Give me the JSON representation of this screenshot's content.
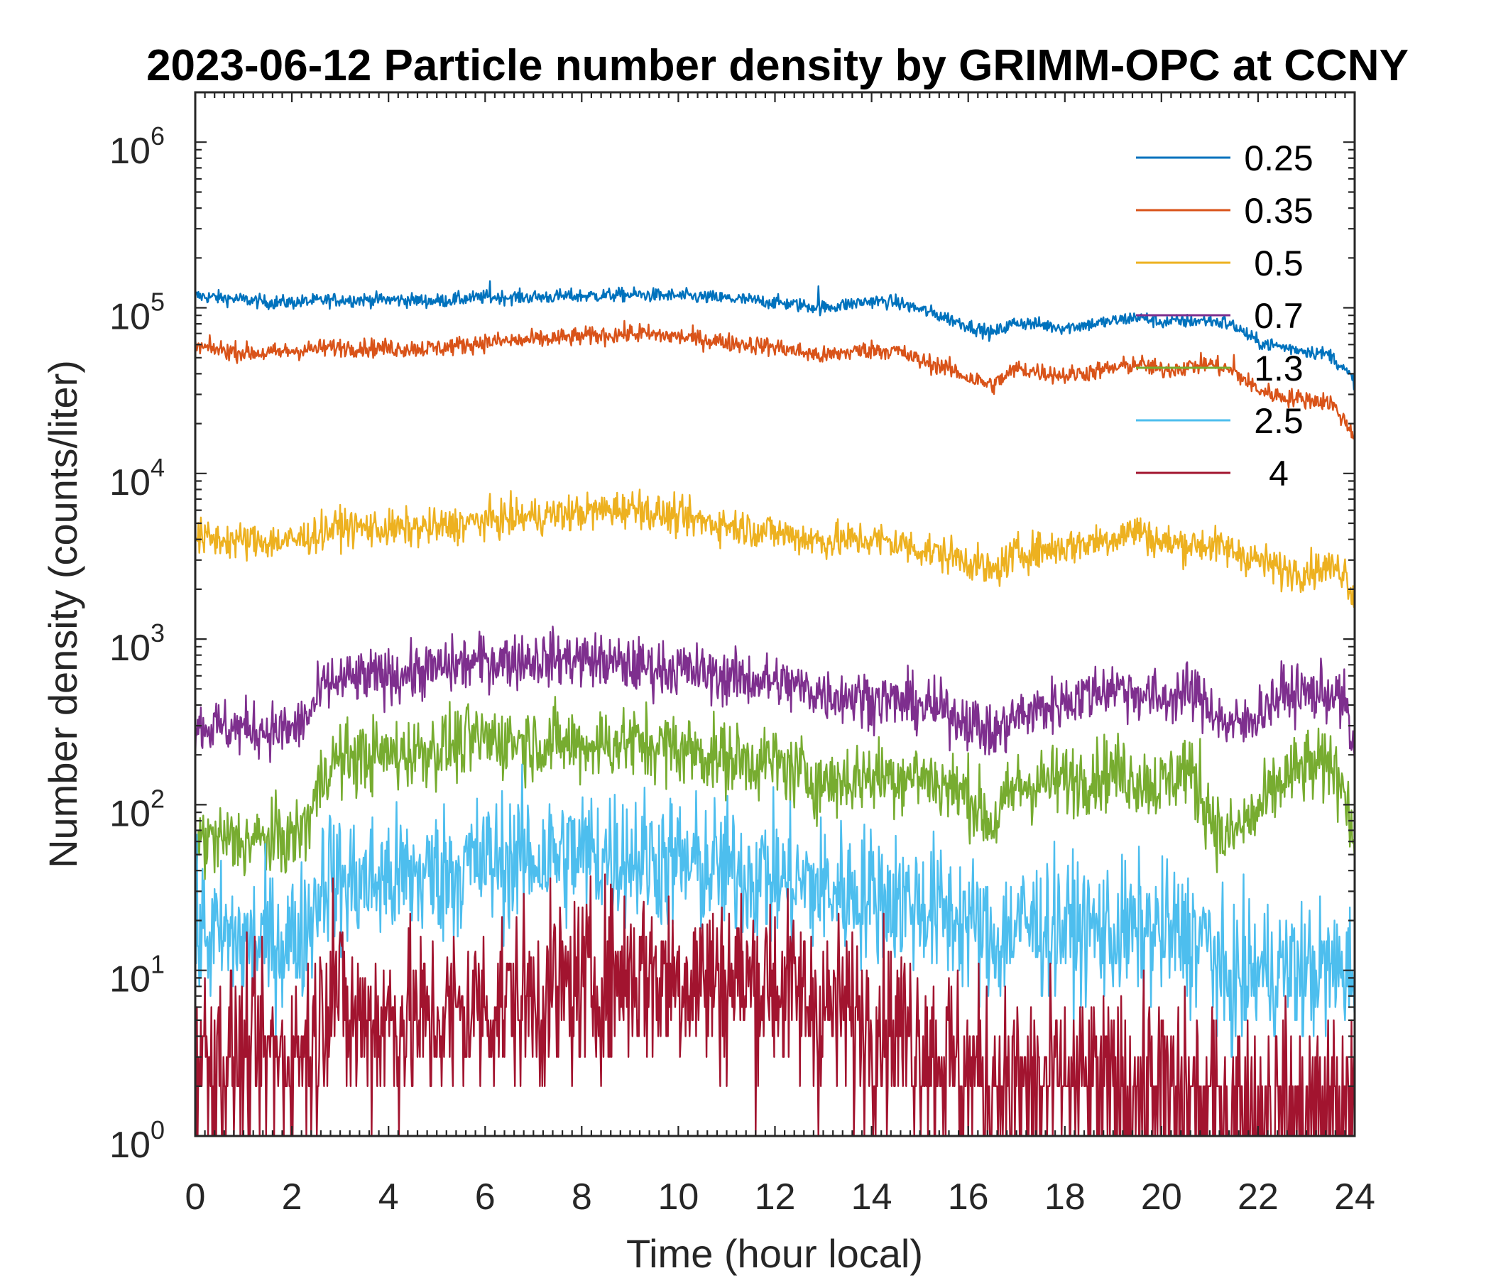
{
  "chart_data": {
    "type": "line",
    "title": "2023-06-12 Particle number density by GRIMM-OPC at CCNY",
    "xlabel": "Time (hour local)",
    "ylabel": "Number density (counts/liter)",
    "xlim": [
      0,
      24
    ],
    "ylim": [
      1,
      2000000
    ],
    "yscale": "log",
    "x_ticks": [
      0,
      2,
      4,
      6,
      8,
      10,
      12,
      14,
      16,
      18,
      20,
      22,
      24
    ],
    "x_tick_labels": [
      "0",
      "2",
      "4",
      "6",
      "8",
      "10",
      "12",
      "14",
      "16",
      "18",
      "20",
      "22",
      "24"
    ],
    "y_ticks": [
      {
        "value": 1,
        "base": "10",
        "exp": "0"
      },
      {
        "value": 10,
        "base": "10",
        "exp": "1"
      },
      {
        "value": 100,
        "base": "10",
        "exp": "2"
      },
      {
        "value": 1000,
        "base": "10",
        "exp": "3"
      },
      {
        "value": 10000,
        "base": "10",
        "exp": "4"
      },
      {
        "value": 100000,
        "base": "10",
        "exp": "5"
      },
      {
        "value": 1000000,
        "base": "10",
        "exp": "6"
      }
    ],
    "grid": false,
    "legend_position": "top-right",
    "series": [
      {
        "name": "0.25",
        "color": "#0072BD",
        "noise": 0.03,
        "x": [
          0,
          0.5,
          1,
          1.5,
          2,
          3,
          4,
          5,
          6,
          7,
          8,
          9,
          10,
          11,
          12,
          13,
          13.5,
          14,
          14.5,
          15,
          15.5,
          16,
          16.5,
          17,
          18,
          19,
          19.5,
          20,
          21,
          21.5,
          22,
          22.5,
          23,
          23.5,
          24
        ],
        "values": [
          118000,
          115000,
          112000,
          108000,
          108000,
          112000,
          112000,
          110000,
          116000,
          116000,
          118000,
          120000,
          118000,
          114000,
          108000,
          100000,
          105000,
          110000,
          108000,
          98000,
          88000,
          78000,
          70000,
          82000,
          76000,
          83000,
          88000,
          82000,
          84000,
          78000,
          62000,
          58000,
          55000,
          52000,
          36000
        ],
        "spikes": [
          [
            6.1,
            145000
          ],
          [
            12.9,
            135000
          ],
          [
            21.3,
            90000
          ]
        ]
      },
      {
        "name": "0.35",
        "color": "#D95319",
        "noise": 0.04,
        "x": [
          0,
          0.5,
          1,
          1.5,
          2,
          3,
          4,
          5,
          6,
          7,
          8,
          9,
          10,
          11,
          12,
          13,
          13.5,
          14,
          14.5,
          15,
          15.5,
          16,
          16.5,
          17,
          18,
          19,
          19.5,
          20,
          21,
          21.5,
          22,
          22.5,
          23,
          23.5,
          24
        ],
        "values": [
          58000,
          56000,
          54000,
          53000,
          55000,
          58000,
          57000,
          57000,
          62000,
          64000,
          67000,
          70000,
          67000,
          62000,
          58000,
          51000,
          54000,
          56000,
          55000,
          48000,
          44000,
          38000,
          34000,
          43000,
          39000,
          43000,
          46000,
          42000,
          46000,
          41000,
          32000,
          29000,
          28000,
          27000,
          17000
        ],
        "spikes": [
          [
            9.2,
            80000
          ],
          [
            21.5,
            52000
          ]
        ]
      },
      {
        "name": "0.5",
        "color": "#EDB120",
        "noise": 0.08,
        "x": [
          0,
          1,
          2,
          2.5,
          3,
          4,
          5,
          6,
          7,
          8,
          9,
          10,
          11,
          12,
          13,
          14,
          14.5,
          15,
          16,
          16.5,
          17,
          18,
          19,
          19.5,
          20,
          21,
          21.5,
          22,
          22.5,
          23,
          23.5,
          23.8,
          24
        ],
        "values": [
          4100,
          3900,
          3900,
          4300,
          4800,
          4600,
          4700,
          5200,
          5500,
          5800,
          6200,
          5400,
          4900,
          4400,
          3900,
          4000,
          3800,
          3500,
          3000,
          2500,
          3300,
          3600,
          4100,
          4600,
          3800,
          3700,
          3400,
          3000,
          2600,
          2600,
          2700,
          2600,
          1700
        ],
        "spikes": [
          [
            9.2,
            8000
          ]
        ]
      },
      {
        "name": "0.7",
        "color": "#7E2F8E",
        "noise": 0.12,
        "x": [
          0,
          1,
          2,
          2.3,
          2.7,
          3,
          4,
          5,
          6,
          7,
          8,
          9,
          10,
          11,
          12,
          13,
          14,
          15,
          16,
          16.5,
          17,
          18,
          19,
          20,
          20.5,
          21,
          21.3,
          21.7,
          22,
          22.5,
          23,
          23.5,
          23.8,
          24
        ],
        "values": [
          300,
          290,
          280,
          330,
          530,
          560,
          600,
          660,
          740,
          760,
          760,
          690,
          660,
          590,
          550,
          470,
          440,
          400,
          330,
          260,
          340,
          420,
          520,
          430,
          480,
          400,
          310,
          300,
          360,
          470,
          470,
          470,
          420,
          170
        ],
        "spikes": [
          [
            20.7,
            650
          ]
        ]
      },
      {
        "name": "1.3",
        "color": "#77AC30",
        "noise": 0.16,
        "x": [
          0,
          1,
          2,
          2.3,
          2.7,
          3,
          4,
          5,
          6,
          7,
          8,
          9,
          10,
          11,
          12,
          13,
          14,
          15,
          16,
          16.5,
          17,
          18,
          19,
          20,
          20.5,
          21,
          21.3,
          22,
          22.5,
          23,
          23.5,
          23.8,
          24
        ],
        "values": [
          62,
          60,
          62,
          75,
          170,
          190,
          200,
          220,
          250,
          240,
          230,
          240,
          220,
          190,
          180,
          135,
          150,
          150,
          115,
          75,
          130,
          140,
          160,
          130,
          170,
          90,
          60,
          90,
          140,
          170,
          160,
          140,
          50
        ],
        "spikes": [
          [
            20.8,
            250
          ],
          [
            23.5,
            260
          ]
        ]
      },
      {
        "name": "2.5",
        "color": "#4DBEEE",
        "noise": 0.3,
        "x": [
          0,
          1,
          2,
          2.3,
          2.7,
          3,
          4,
          5,
          6,
          7,
          8,
          9,
          10,
          11,
          12,
          13,
          14,
          15,
          16,
          16.5,
          17,
          18,
          19,
          20,
          20.5,
          21,
          21.3,
          22,
          23,
          24
        ],
        "values": [
          17,
          15,
          15,
          18,
          40,
          33,
          36,
          38,
          45,
          48,
          50,
          50,
          44,
          40,
          36,
          31,
          29,
          25,
          20,
          14,
          19,
          18,
          17,
          17,
          16,
          15,
          8,
          10,
          10,
          10
        ],
        "spikes": [
          [
            2.8,
            82
          ],
          [
            11.8,
            70
          ]
        ]
      },
      {
        "name": "4",
        "color": "#A2142F",
        "noise": 0.4,
        "x": [
          0,
          1,
          2,
          2.5,
          2.8,
          3.2,
          4,
          5,
          6,
          7,
          8,
          9,
          10,
          11,
          12,
          13,
          14,
          15,
          16,
          17,
          18,
          19,
          20,
          21,
          22,
          23,
          24
        ],
        "values": [
          3,
          3,
          3,
          4,
          9,
          5,
          5,
          5,
          6,
          7,
          8,
          10,
          9,
          9,
          8,
          6,
          5,
          4,
          2.5,
          2,
          2,
          2,
          2,
          1.5,
          1.5,
          1.5,
          1.5
        ],
        "spikes": [
          [
            2.85,
            36
          ],
          [
            11.9,
            25
          ]
        ]
      }
    ]
  }
}
